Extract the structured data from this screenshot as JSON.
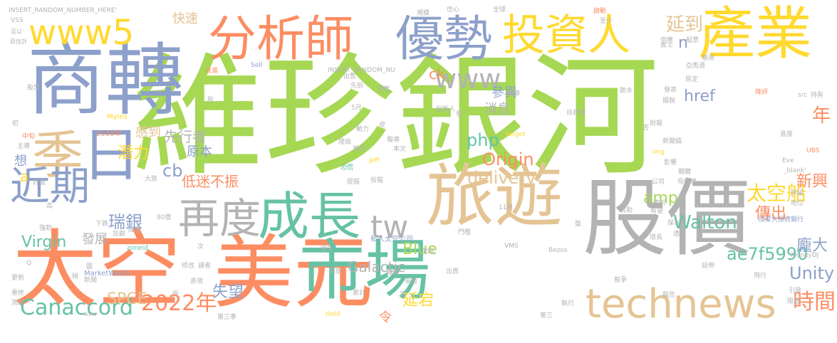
{
  "colors": {
    "green": "#a6d854",
    "grey": "#b3b3b3",
    "tan": "#e5c494",
    "orange": "#fc8d62",
    "blue": "#8da0cb",
    "teal": "#66c2a5",
    "yellow": "#ffd92f",
    "pink": "#e78ac3"
  },
  "words": [
    {
      "t": "維珍銀河",
      "c": "green"
    },
    {
      "t": "太空",
      "c": "orange"
    },
    {
      "t": "美元",
      "c": "orange"
    },
    {
      "t": "股價",
      "c": "grey"
    },
    {
      "t": "商轉",
      "c": "blue"
    },
    {
      "t": "旅遊",
      "c": "tan"
    },
    {
      "t": "市場",
      "c": "teal"
    },
    {
      "t": "產業",
      "c": "yellow"
    },
    {
      "t": "分析師",
      "c": "orange"
    },
    {
      "t": "優勢",
      "c": "blue"
    },
    {
      "t": "投資人",
      "c": "yellow"
    },
    {
      "t": "成長",
      "c": "teal"
    },
    {
      "t": "再度",
      "c": "grey"
    },
    {
      "t": "日",
      "c": "blue"
    },
    {
      "t": "季",
      "c": "tan"
    },
    {
      "t": "近期",
      "c": "blue"
    },
    {
      "t": "www5",
      "c": "yellow"
    },
    {
      "t": "www",
      "c": "grey"
    },
    {
      "t": "tw",
      "c": "grey"
    },
    {
      "t": "technews",
      "c": "tan"
    },
    {
      "t": "Canaccord",
      "c": "teal"
    },
    {
      "t": "2022年",
      "c": "orange"
    },
    {
      "t": "時間",
      "c": "orange"
    },
    {
      "t": "ae7f5990",
      "c": "teal"
    },
    {
      "t": "Unity",
      "c": "blue"
    },
    {
      "t": "Walton",
      "c": "teal"
    },
    {
      "t": "太空船",
      "c": "yellow"
    },
    {
      "t": "Origin",
      "c": "orange"
    },
    {
      "t": "delivery",
      "c": "tan"
    },
    {
      "t": "php",
      "c": "teal"
    },
    {
      "t": "amp",
      "c": "green"
    },
    {
      "t": "Blue",
      "c": "green"
    },
    {
      "t": "cb",
      "c": "blue"
    },
    {
      "t": "Virgin",
      "c": "teal"
    },
    {
      "t": "瑞銀",
      "c": "blue"
    },
    {
      "t": "延到",
      "c": "tan"
    },
    {
      "t": "年",
      "c": "orange"
    },
    {
      "t": "href",
      "c": "blue"
    },
    {
      "t": "Galactic",
      "c": "grey"
    },
    {
      "t": "失望",
      "c": "blue"
    },
    {
      "t": "延宕",
      "c": "yellow"
    },
    {
      "t": "SPCE",
      "c": "tan"
    },
    {
      "t": "龐大",
      "c": "blue"
    },
    {
      "t": "新興",
      "c": "orange"
    },
    {
      "t": "傳出",
      "c": "orange"
    },
    {
      "t": "低迷不振",
      "c": "orange"
    },
    {
      "t": "原本",
      "c": "blue"
    },
    {
      "t": "潛力",
      "c": "yellow"
    },
    {
      "t": "參與",
      "c": "blue"
    },
    {
      "t": "消息",
      "c": "grey"
    },
    {
      "t": "先行者",
      "c": "grey"
    },
    {
      "t": "感到",
      "c": "tan"
    },
    {
      "t": "快速",
      "c": "tan"
    },
    {
      "t": "發展",
      "c": "grey"
    },
    {
      "t": "想",
      "c": "blue"
    },
    {
      "t": "a",
      "c": "yellow"
    },
    {
      "t": "ck",
      "c": "orange"
    },
    {
      "t": "n",
      "c": "blue"
    },
    {
      "t": "令",
      "c": "orange"
    },
    {
      "t": "INSERT_RANDOM_NUMBER_HERE'",
      "c": "grey"
    },
    {
      "t": "INSERT_RANDOM_NU",
      "c": "grey"
    },
    {
      "t": "Sell",
      "c": "blue"
    },
    {
      "t": "Myles",
      "c": "yellow"
    },
    {
      "t": "2030年",
      "c": "orange"
    },
    {
      "t": "MarketWatch",
      "c": "blue"
    },
    {
      "t": "私人太空公司",
      "c": "blue"
    },
    {
      "t": "加拿大投資銀行",
      "c": "blue"
    },
    {
      "t": "MoneyDJ",
      "c": "grey"
    },
    {
      "t": "Bezos",
      "c": "grey"
    },
    {
      "t": "Jeff",
      "c": "yellow"
    },
    {
      "t": "UBS",
      "c": "orange"
    },
    {
      "t": "_blank'",
      "c": "grey"
    },
    {
      "t": "Eve",
      "c": "grey"
    },
    {
      "t": "src",
      "c": "grey"
    },
    {
      "t": "target",
      "c": "yellow"
    },
    {
      "t": "img",
      "c": "yellow"
    },
    {
      "t": "zoneid",
      "c": "teal"
    },
    {
      "t": "Hold",
      "c": "yellow"
    },
    {
      "t": "avw",
      "c": "grey"
    },
    {
      "t": "VMS",
      "c": "grey"
    },
    {
      "t": "VSS",
      "c": "grey"
    },
    {
      "t": "足以",
      "c": "grey"
    },
    {
      "t": "目估計",
      "c": "grey"
    },
    {
      "t": "股票",
      "c": "grey"
    },
    {
      "t": "改進",
      "c": "orange"
    },
    {
      "t": "先前",
      "c": "grey"
    },
    {
      "t": "5月",
      "c": "grey"
    },
    {
      "t": "第四",
      "c": "grey"
    },
    {
      "t": "本文",
      "c": "grey"
    },
    {
      "t": "理由",
      "c": "grey"
    },
    {
      "t": "恐慌",
      "c": "teal"
    },
    {
      "t": "提振",
      "c": "grey"
    },
    {
      "t": "投報",
      "c": "grey"
    },
    {
      "t": "報導",
      "c": "grey"
    },
    {
      "t": "動力",
      "c": "grey"
    },
    {
      "t": "收",
      "c": "grey"
    },
    {
      "t": "創新人",
      "c": "grey"
    },
    {
      "t": "預售",
      "c": "grey"
    },
    {
      "t": "出售",
      "c": "grey"
    },
    {
      "t": "更多",
      "c": "grey"
    },
    {
      "t": "目標價",
      "c": "grey"
    },
    {
      "t": "新聞稿",
      "c": "grey"
    },
    {
      "t": "財報",
      "c": "grey"
    },
    {
      "t": "影響",
      "c": "grey"
    },
    {
      "t": "關鍵",
      "c": "grey"
    },
    {
      "t": "公司",
      "c": "grey"
    },
    {
      "t": "母艦機",
      "c": "grey"
    },
    {
      "t": "評級",
      "c": "grey"
    },
    {
      "t": "地位",
      "c": "grey"
    },
    {
      "t": "有助",
      "c": "grey"
    },
    {
      "t": "情形",
      "c": "grey"
    },
    {
      "t": "保有",
      "c": "grey"
    },
    {
      "t": "透露",
      "c": "grey"
    },
    {
      "t": "增長",
      "c": "grey"
    },
    {
      "t": "延伸",
      "c": "grey"
    },
    {
      "t": "飛行",
      "c": "grey"
    },
    {
      "t": "報告",
      "c": "grey"
    },
    {
      "t": "引發",
      "c": "grey"
    },
    {
      "t": "限證",
      "c": "grey"
    },
    {
      "t": "執行",
      "c": "grey"
    },
    {
      "t": "第三",
      "c": "grey"
    },
    {
      "t": "第三季",
      "c": "grey"
    },
    {
      "t": "降評",
      "c": "orange"
    },
    {
      "t": "跌水",
      "c": "grey"
    },
    {
      "t": "發表",
      "c": "grey"
    },
    {
      "t": "擺脫",
      "c": "grey"
    },
    {
      "t": "進度",
      "c": "grey"
    },
    {
      "t": "原定",
      "c": "grey"
    },
    {
      "t": "持有",
      "c": "grey"
    },
    {
      "t": "亞馬遜",
      "c": "grey"
    },
    {
      "t": "船票",
      "c": "grey"
    },
    {
      "t": "賓士",
      "c": "grey"
    },
    {
      "t": "窺道",
      "c": "grey"
    },
    {
      "t": "供應",
      "c": "grey"
    },
    {
      "t": "啟動",
      "c": "orange"
    },
    {
      "t": "至少",
      "c": "grey"
    },
    {
      "t": "信心",
      "c": "grey"
    },
    {
      "t": "全球",
      "c": "grey"
    },
    {
      "t": "規模",
      "c": "grey"
    },
    {
      "t": "高",
      "c": "grey"
    },
    {
      "t": "強勁",
      "c": "grey"
    },
    {
      "t": "下跌",
      "c": "grey"
    },
    {
      "t": "80億",
      "c": "grey"
    },
    {
      "t": "加劇",
      "c": "grey"
    },
    {
      "t": "降至",
      "c": "grey"
    },
    {
      "t": "大跌",
      "c": "grey"
    },
    {
      "t": "計畫",
      "c": "grey"
    },
    {
      "t": "中旬",
      "c": "orange"
    },
    {
      "t": "主導",
      "c": "grey"
    },
    {
      "t": "初",
      "c": "grey"
    },
    {
      "t": "更新",
      "c": "grey"
    },
    {
      "t": "重挫",
      "c": "grey"
    },
    {
      "t": "測試",
      "c": "grey"
    },
    {
      "t": "新聞",
      "c": "grey"
    },
    {
      "t": "修改",
      "c": "grey"
    },
    {
      "t": "表現",
      "c": "grey"
    },
    {
      "t": "來源",
      "c": "grey"
    },
    {
      "t": "累計",
      "c": "grey"
    },
    {
      "t": "商旅",
      "c": "grey"
    },
    {
      "t": "出貨",
      "c": "grey"
    },
    {
      "t": "轉載",
      "c": "grey"
    },
    {
      "t": "面臨",
      "c": "grey"
    },
    {
      "t": "損失",
      "c": "grey"
    },
    {
      "t": "競爭",
      "c": "grey"
    },
    {
      "t": "次",
      "c": "grey"
    },
    {
      "t": "受",
      "c": "grey"
    },
    {
      "t": "稍",
      "c": "grey"
    },
    {
      "t": "圖",
      "c": "grey"
    },
    {
      "t": "定",
      "c": "grey"
    },
    {
      "t": "11月",
      "c": "grey"
    },
    {
      "t": "盤",
      "c": "grey"
    },
    {
      "t": "門檻",
      "c": "grey"
    },
    {
      "t": "股",
      "c": "grey"
    },
    {
      "t": "發",
      "c": "grey"
    },
    {
      "t": "讀者",
      "c": "grey"
    },
    {
      "t": "Q",
      "c": "grey"
    },
    {
      "t": "否",
      "c": "grey"
    },
    {
      "t": "有望",
      "c": "grey"
    }
  ]
}
